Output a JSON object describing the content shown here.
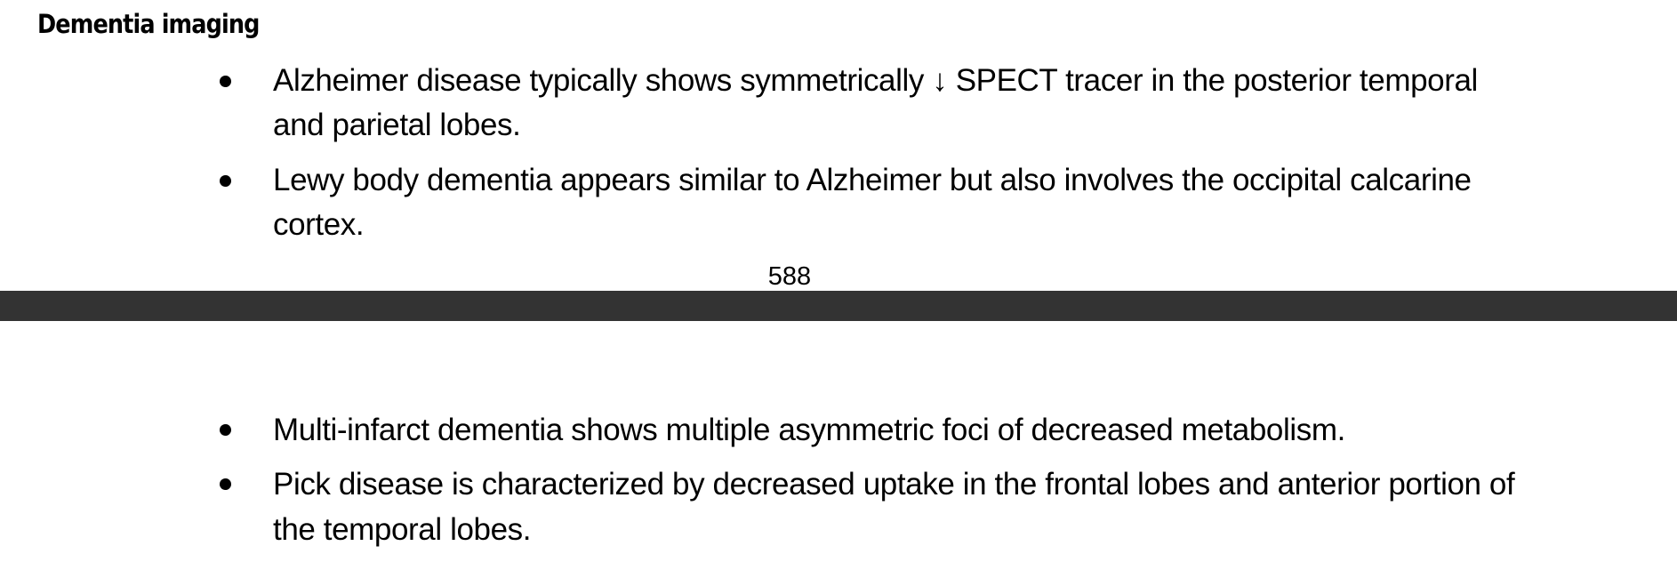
{
  "page_top": {
    "heading": "Dementia imaging",
    "bullets": [
      "Alzheimer disease typically shows symmetrically ↓ SPECT tracer in the posterior temporal and parietal lobes.",
      "Lewy body dementia appears similar to Alzheimer but also involves the occipital calcarine cortex."
    ],
    "page_number": "588"
  },
  "separator_color": "#333333",
  "page_bottom": {
    "bullets": [
      "Multi-infarct dementia shows multiple asymmetric foci of decreased metabolism.",
      "Pick disease is characterized by decreased uptake in the frontal lobes and anterior portion of the temporal lobes."
    ]
  }
}
